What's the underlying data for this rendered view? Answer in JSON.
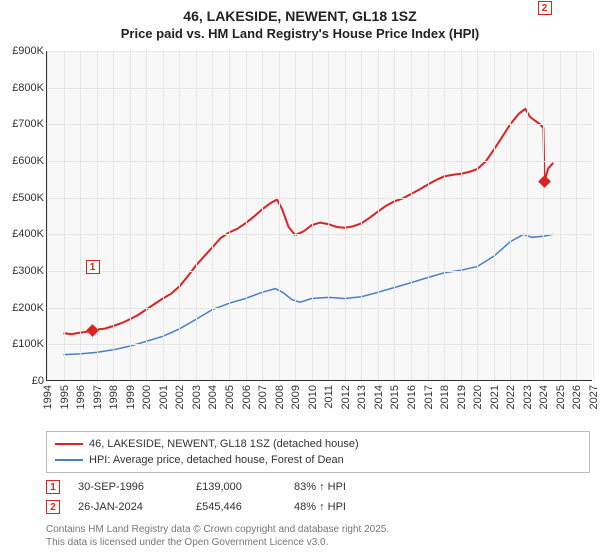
{
  "title": {
    "line1": "46, LAKESIDE, NEWENT, GL18 1SZ",
    "line2": "Price paid vs. HM Land Registry's House Price Index (HPI)"
  },
  "chart": {
    "type": "line",
    "background_color": "#f8f8f8",
    "grid_color": "#e6e6e6",
    "axis_color": "#333333",
    "xlim": [
      1994,
      2027
    ],
    "ylim": [
      0,
      900000
    ],
    "ytick_step": 100000,
    "yticks": [
      "£0",
      "£100K",
      "£200K",
      "£300K",
      "£400K",
      "£500K",
      "£600K",
      "£700K",
      "£800K",
      "£900K"
    ],
    "xticks": [
      1994,
      1995,
      1996,
      1997,
      1998,
      1999,
      2000,
      2001,
      2002,
      2003,
      2004,
      2005,
      2006,
      2007,
      2008,
      2009,
      2010,
      2011,
      2012,
      2013,
      2014,
      2015,
      2016,
      2017,
      2018,
      2019,
      2020,
      2021,
      2022,
      2023,
      2024,
      2025,
      2026,
      2027
    ],
    "tick_fontsize": 11,
    "series": [
      {
        "name": "46, LAKESIDE, NEWENT, GL18 1SZ (detached house)",
        "color": "#dd2222",
        "line_width": 2,
        "data": [
          [
            1995.0,
            130000
          ],
          [
            1995.5,
            128000
          ],
          [
            1996.0,
            132000
          ],
          [
            1996.5,
            135000
          ],
          [
            1996.75,
            139000
          ],
          [
            1997.5,
            143000
          ],
          [
            1998.0,
            150000
          ],
          [
            1998.5,
            158000
          ],
          [
            1999.0,
            168000
          ],
          [
            1999.5,
            180000
          ],
          [
            2000.0,
            195000
          ],
          [
            2000.5,
            210000
          ],
          [
            2001.0,
            225000
          ],
          [
            2001.5,
            238000
          ],
          [
            2002.0,
            258000
          ],
          [
            2002.5,
            285000
          ],
          [
            2003.0,
            315000
          ],
          [
            2003.5,
            340000
          ],
          [
            2004.0,
            365000
          ],
          [
            2004.5,
            390000
          ],
          [
            2005.0,
            405000
          ],
          [
            2005.5,
            415000
          ],
          [
            2006.0,
            430000
          ],
          [
            2006.5,
            448000
          ],
          [
            2007.0,
            468000
          ],
          [
            2007.5,
            485000
          ],
          [
            2007.9,
            495000
          ],
          [
            2008.2,
            470000
          ],
          [
            2008.6,
            420000
          ],
          [
            2009.0,
            398000
          ],
          [
            2009.5,
            408000
          ],
          [
            2010.0,
            425000
          ],
          [
            2010.5,
            432000
          ],
          [
            2011.0,
            428000
          ],
          [
            2011.5,
            420000
          ],
          [
            2012.0,
            418000
          ],
          [
            2012.5,
            422000
          ],
          [
            2013.0,
            430000
          ],
          [
            2013.5,
            445000
          ],
          [
            2014.0,
            462000
          ],
          [
            2014.5,
            478000
          ],
          [
            2015.0,
            490000
          ],
          [
            2015.5,
            498000
          ],
          [
            2016.0,
            510000
          ],
          [
            2016.5,
            522000
          ],
          [
            2017.0,
            535000
          ],
          [
            2017.5,
            548000
          ],
          [
            2018.0,
            558000
          ],
          [
            2018.5,
            562000
          ],
          [
            2019.0,
            565000
          ],
          [
            2019.5,
            570000
          ],
          [
            2020.0,
            578000
          ],
          [
            2020.5,
            598000
          ],
          [
            2021.0,
            630000
          ],
          [
            2021.5,
            665000
          ],
          [
            2022.0,
            700000
          ],
          [
            2022.5,
            728000
          ],
          [
            2022.9,
            742000
          ],
          [
            2023.2,
            720000
          ],
          [
            2023.5,
            710000
          ],
          [
            2023.8,
            700000
          ],
          [
            2024.0,
            690000
          ],
          [
            2024.07,
            545446
          ],
          [
            2024.3,
            580000
          ],
          [
            2024.6,
            595000
          ]
        ]
      },
      {
        "name": "HPI: Average price, detached house, Forest of Dean",
        "color": "#4a7ec8",
        "line_width": 1.5,
        "data": [
          [
            1995.0,
            72000
          ],
          [
            1996.0,
            74000
          ],
          [
            1997.0,
            78000
          ],
          [
            1998.0,
            85000
          ],
          [
            1999.0,
            95000
          ],
          [
            2000.0,
            108000
          ],
          [
            2001.0,
            122000
          ],
          [
            2002.0,
            142000
          ],
          [
            2003.0,
            168000
          ],
          [
            2004.0,
            195000
          ],
          [
            2005.0,
            212000
          ],
          [
            2006.0,
            225000
          ],
          [
            2007.0,
            242000
          ],
          [
            2007.8,
            252000
          ],
          [
            2008.3,
            240000
          ],
          [
            2008.8,
            222000
          ],
          [
            2009.3,
            215000
          ],
          [
            2010.0,
            225000
          ],
          [
            2011.0,
            228000
          ],
          [
            2012.0,
            225000
          ],
          [
            2013.0,
            230000
          ],
          [
            2014.0,
            242000
          ],
          [
            2015.0,
            255000
          ],
          [
            2016.0,
            268000
          ],
          [
            2017.0,
            282000
          ],
          [
            2018.0,
            295000
          ],
          [
            2019.0,
            302000
          ],
          [
            2020.0,
            312000
          ],
          [
            2021.0,
            340000
          ],
          [
            2022.0,
            380000
          ],
          [
            2022.8,
            400000
          ],
          [
            2023.3,
            392000
          ],
          [
            2024.0,
            395000
          ],
          [
            2024.6,
            400000
          ]
        ]
      }
    ],
    "sale_markers": [
      {
        "num": "1",
        "year": 1996.75,
        "value": 139000,
        "box_offset_y": -70
      },
      {
        "num": "2",
        "year": 2024.07,
        "value": 545446,
        "box_offset_y": -180
      }
    ]
  },
  "legend": {
    "items": [
      {
        "color": "#dd2222",
        "label": "46, LAKESIDE, NEWENT, GL18 1SZ (detached house)"
      },
      {
        "color": "#4a7ec8",
        "label": "HPI: Average price, detached house, Forest of Dean"
      }
    ]
  },
  "sales": [
    {
      "num": "1",
      "date": "30-SEP-1996",
      "price": "£139,000",
      "pct": "83% ↑ HPI"
    },
    {
      "num": "2",
      "date": "26-JAN-2024",
      "price": "£545,446",
      "pct": "48% ↑ HPI"
    }
  ],
  "footnote": {
    "line1": "Contains HM Land Registry data © Crown copyright and database right 2025.",
    "line2": "This data is licensed under the Open Government Licence v3.0."
  }
}
